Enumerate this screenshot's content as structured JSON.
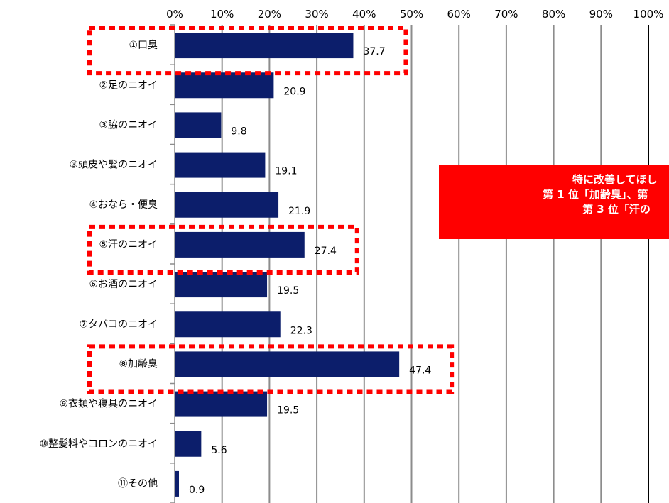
{
  "chart_data": {
    "type": "bar",
    "orientation": "horizontal",
    "title": "",
    "xlabel": "",
    "ylabel": "",
    "xlim": [
      0,
      100
    ],
    "x_ticks": [
      "0%",
      "10%",
      "20%",
      "30%",
      "40%",
      "50%",
      "60%",
      "70%",
      "80%",
      "90%",
      "100%"
    ],
    "grid": true,
    "bar_color": "#0c1e6b",
    "categories": [
      "①口臭",
      "②足のニオイ",
      "③脇のニオイ",
      "③頭皮や髪のニオイ",
      "④おなら・便臭",
      "⑤汗のニオイ",
      "⑥お酒のニオイ",
      "⑦タバコのニオイ",
      "⑧加齢臭",
      "⑨衣類や寝具のニオイ",
      "⑩整髪料やコロンのニオイ",
      "⑪その他"
    ],
    "values": [
      37.7,
      20.9,
      9.8,
      19.1,
      21.9,
      27.4,
      19.5,
      22.3,
      47.4,
      19.5,
      5.6,
      0.9
    ],
    "value_labels": [
      "37.7",
      "20.9",
      "9.8",
      "19.1",
      "21.9",
      "27.4",
      "19.5",
      "22.3",
      "47.4",
      "19.5",
      "5.6",
      "0.9"
    ],
    "highlighted_categories": [
      "①口臭",
      "⑤汗のニオイ",
      "⑧加齢臭"
    ],
    "highlight_color": "#ff0000",
    "annotation": {
      "lines": [
        "特に改善してほし",
        "第 1 位「加齢臭」、第",
        "第 3 位「汗の"
      ],
      "background": "#ff0000",
      "text_color": "#ffffff"
    }
  }
}
